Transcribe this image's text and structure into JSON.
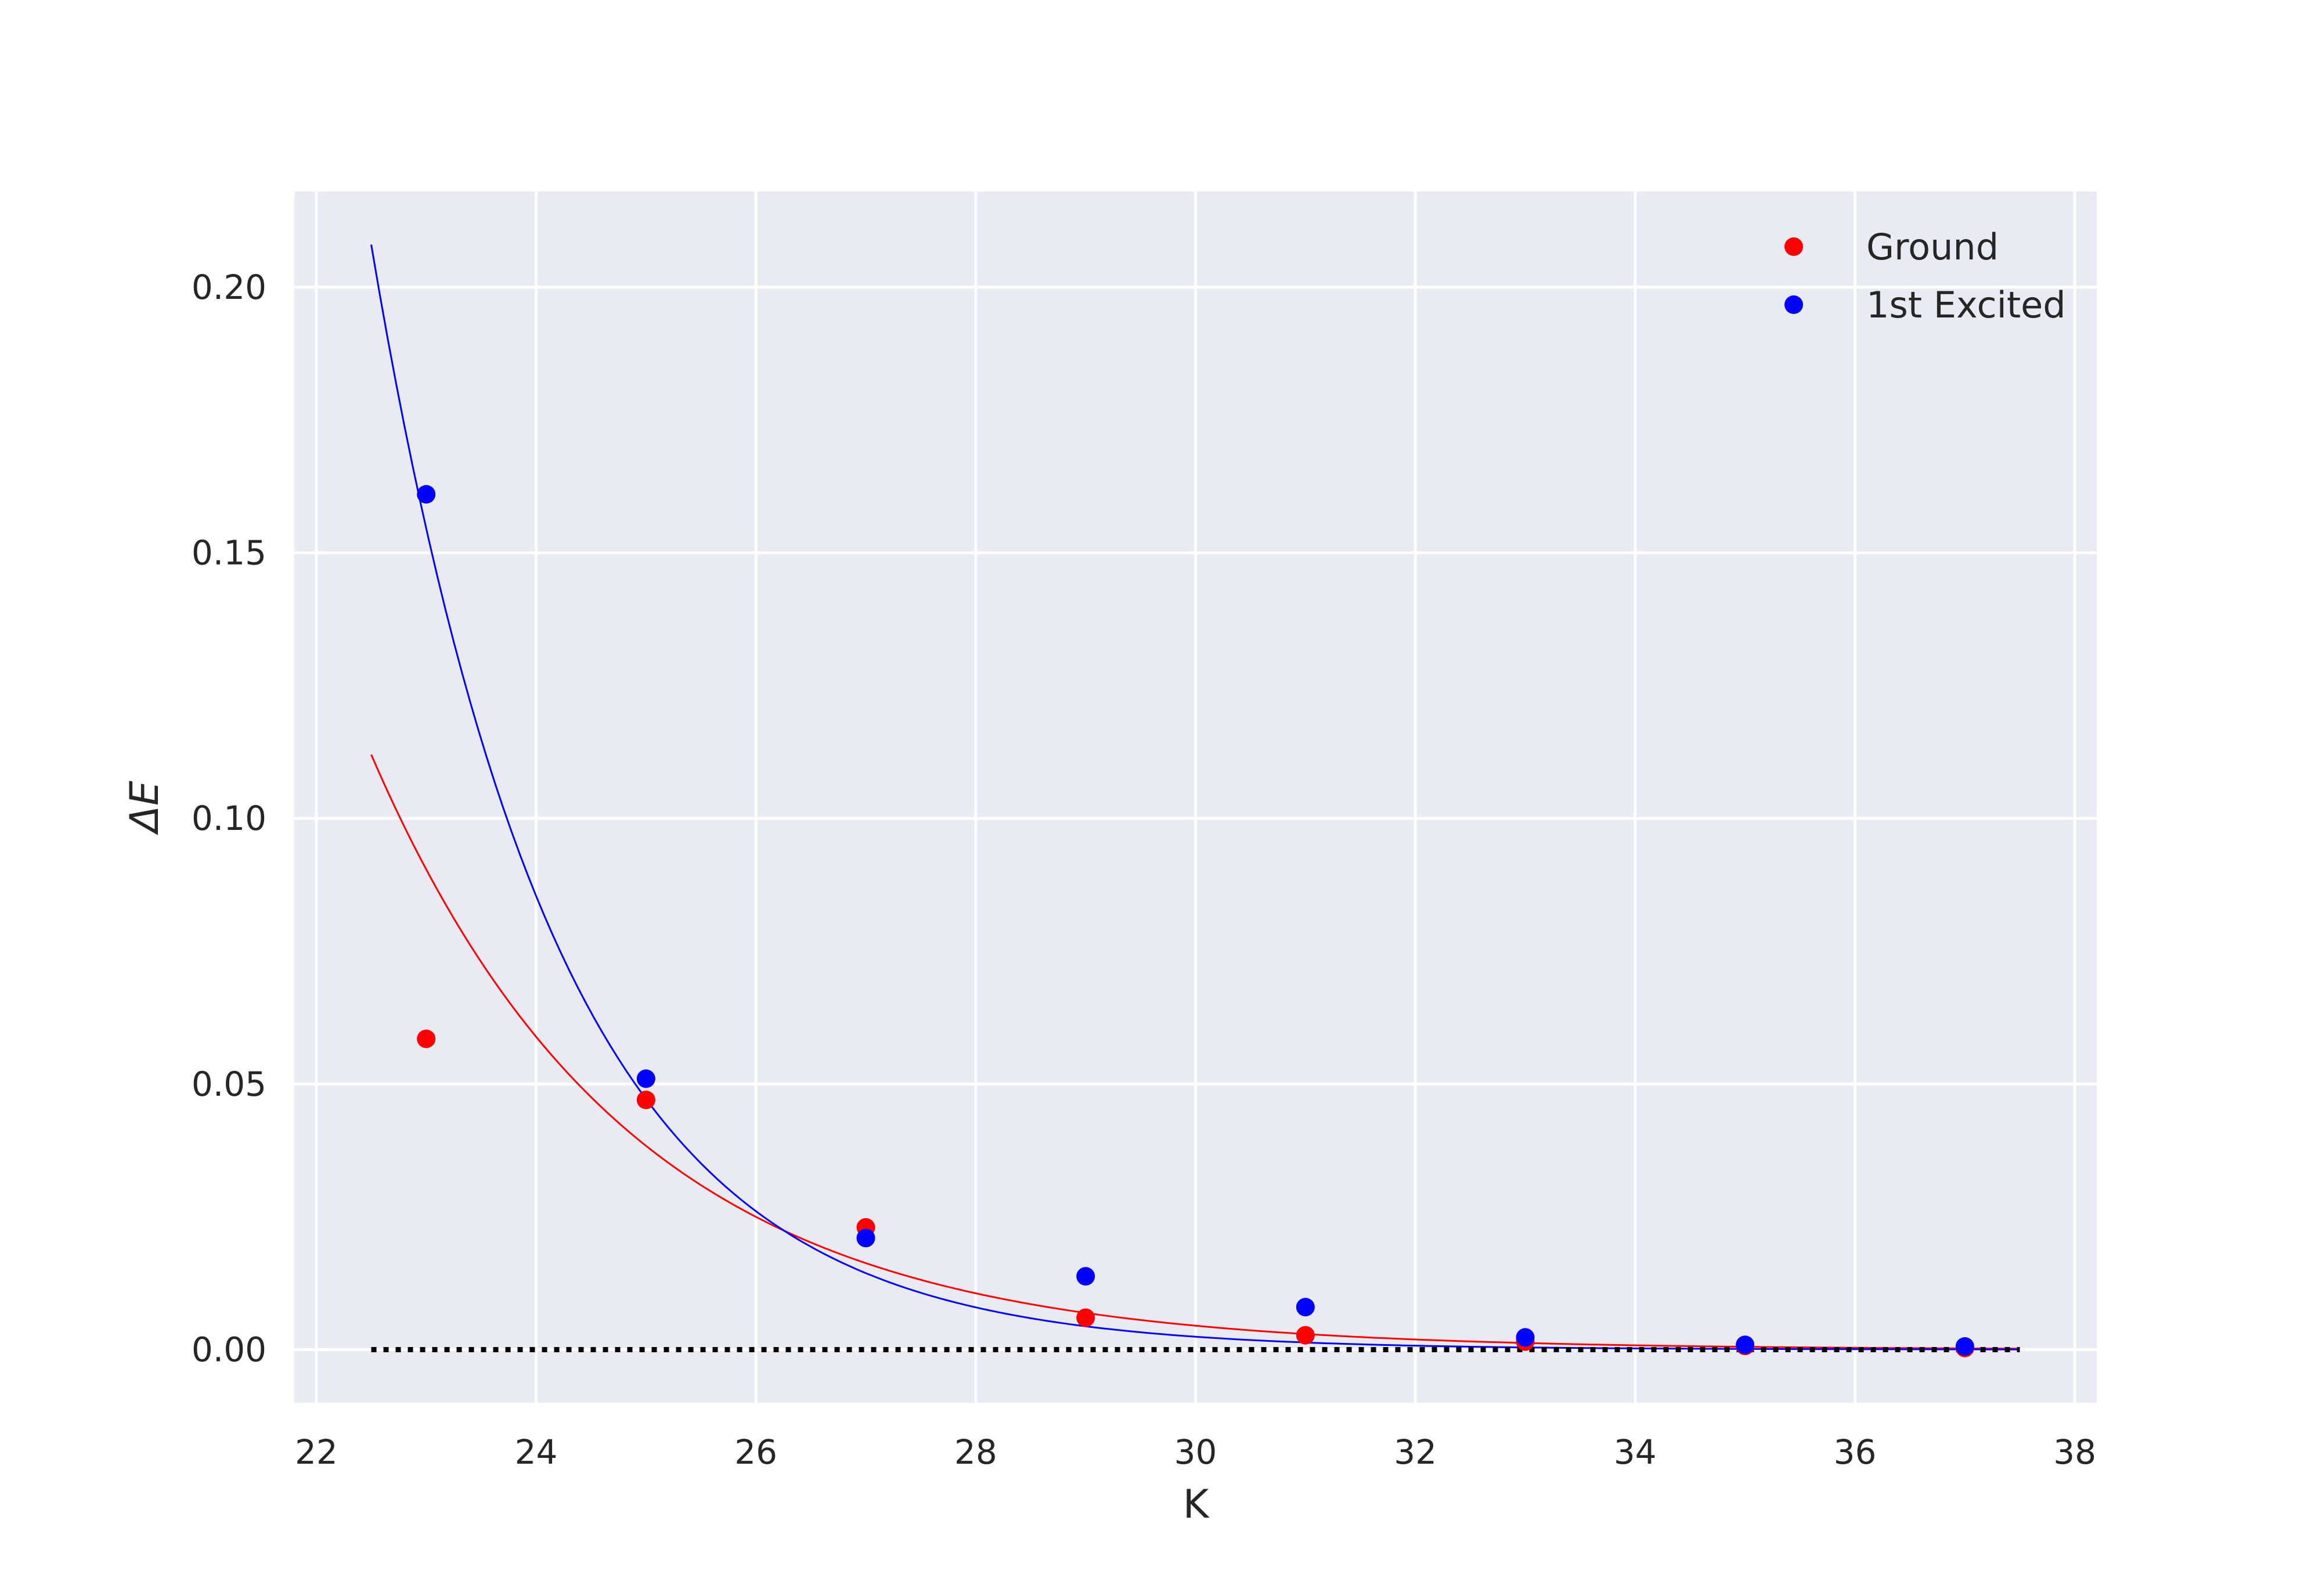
{
  "chart_data": {
    "type": "scatter",
    "title": "",
    "xlabel": "K",
    "ylabel": "ΔE",
    "xlim": [
      21.8,
      38.2
    ],
    "ylim": [
      -0.01,
      0.218
    ],
    "xticks": [
      22,
      24,
      26,
      28,
      30,
      32,
      34,
      36,
      38
    ],
    "xtick_labels": [
      "22",
      "24",
      "26",
      "28",
      "30",
      "32",
      "34",
      "36",
      "38"
    ],
    "yticks": [
      0.0,
      0.05,
      0.1,
      0.15,
      0.2
    ],
    "ytick_labels": [
      "0.00",
      "0.05",
      "0.10",
      "0.15",
      "0.20"
    ],
    "grid": true,
    "background_color": "#eaeaf2",
    "legend_placement": "top-right",
    "series": [
      {
        "name": "Ground",
        "color": "#ff0000",
        "x": [
          23,
          25,
          27,
          29,
          31,
          33,
          35,
          37
        ],
        "y": [
          0.0585,
          0.047,
          0.023,
          0.006,
          0.0027,
          0.0015,
          0.0007,
          0.0003
        ]
      },
      {
        "name": "1st Excited",
        "color": "#0000ff",
        "x": [
          23,
          25,
          27,
          29,
          31,
          33,
          35,
          37
        ],
        "y": [
          0.161,
          0.051,
          0.021,
          0.0138,
          0.008,
          0.0023,
          0.0009,
          0.0006
        ]
      }
    ],
    "fit_curves": [
      {
        "color": "#ff0000",
        "x": [
          22.5,
          37.5
        ],
        "y_start": 0.112,
        "decay_rate": 0.4286
      },
      {
        "color": "#0000ff",
        "x": [
          22.5,
          37.5
        ],
        "y_start": 0.208,
        "decay_rate": 0.5935
      }
    ],
    "reference_line": {
      "y": 0.0,
      "x": [
        22.5,
        37.5
      ],
      "style": "dotted",
      "color": "#000000"
    }
  }
}
